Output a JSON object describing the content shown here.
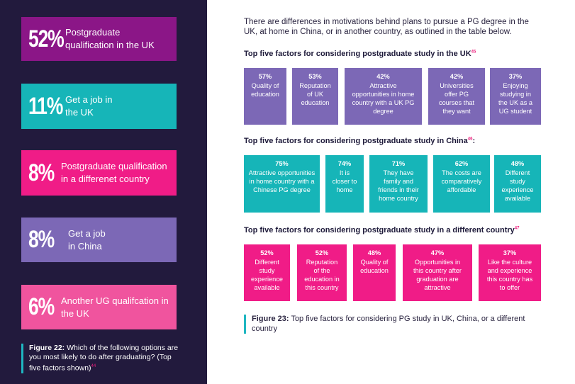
{
  "left_stats": [
    {
      "pct": "52%",
      "label": "Postgraduate qualification in the UK",
      "color": "#8b1687"
    },
    {
      "pct": "11%",
      "label": "Get a job in the UK",
      "color": "#16b5b8"
    },
    {
      "pct": "8%",
      "label": "Postgraduate qualification in a differenet country",
      "color": "#f01c87"
    },
    {
      "pct": "8%",
      "label": "Get a job in China",
      "color": "#7c68b6"
    },
    {
      "pct": "6%",
      "label": "Another UG qualifcation in the UK",
      "color": "#f0549e"
    }
  ],
  "figure22": {
    "label": "Figure 22:",
    "caption": "Which of the following options are you most likely to do after graduating? (Top five factors shown)",
    "ref": "44"
  },
  "intro": "There are differences in motivations behind plans to pursue a PG degree in the UK, at home in China, or in another country, as outlined in the table below.",
  "sections": [
    {
      "title": "Top five factors for considering postgraduate study in the UK",
      "ref": "45",
      "color": "#7c68b6",
      "items": [
        {
          "pct": "57%",
          "text": "Quality of education"
        },
        {
          "pct": "53%",
          "text": "Reputation of UK education"
        },
        {
          "pct": "42%",
          "text": "Attractive opportunities in home country with a UK PG degree"
        },
        {
          "pct": "42%",
          "text": "Universities offer PG courses that they want"
        },
        {
          "pct": "37%",
          "text": "Enjoying studying in the UK as a UG student"
        }
      ]
    },
    {
      "title": "Top five factors for considering postgraduate study in China",
      "ref": "46",
      "color": "#16b5b8",
      "items": [
        {
          "pct": "75%",
          "text": "Attractive opportunities in home country with a Chinese PG degree"
        },
        {
          "pct": "74%",
          "text": "It is closer to home"
        },
        {
          "pct": "71%",
          "text": "They have family and friends in their home country"
        },
        {
          "pct": "62%",
          "text": "The costs are comparatively affordable"
        },
        {
          "pct": "48%",
          "text": "Different study experience available"
        }
      ]
    },
    {
      "title": "Top five factors for considering postgraduate study in a different country",
      "ref": "47",
      "color": "#f01c87",
      "items": [
        {
          "pct": "52%",
          "text": "Different study experience available"
        },
        {
          "pct": "52%",
          "text": "Reputation of the education in this country"
        },
        {
          "pct": "48%",
          "text": "Quality of education"
        },
        {
          "pct": "47%",
          "text": "Opportunities in this country after graduation are attractive"
        },
        {
          "pct": "37%",
          "text": "Like the culture and experience this country has to offer"
        }
      ]
    }
  ],
  "figure23": {
    "label": "Figure 23:",
    "caption": "Top five factors for considering PG study in UK, China, or a different country"
  }
}
